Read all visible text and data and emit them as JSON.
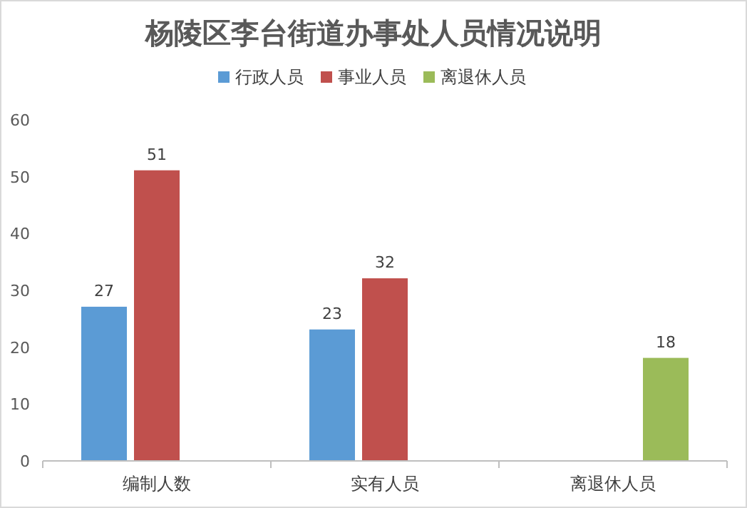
{
  "chart_data": {
    "type": "bar",
    "title": "杨陵区李台街道办事处人员情况说明",
    "categories": [
      "编制人数",
      "实有人员",
      "离退休人员"
    ],
    "series": [
      {
        "name": "行政人员",
        "color": "#5b9bd5",
        "values": [
          27,
          23,
          null
        ]
      },
      {
        "name": "事业人员",
        "color": "#c0504d",
        "values": [
          51,
          32,
          null
        ]
      },
      {
        "name": "离退休人员",
        "color": "#9bbb59",
        "values": [
          null,
          null,
          18
        ]
      }
    ],
    "ylim": [
      0,
      60
    ],
    "yticks": [
      0,
      10,
      20,
      30,
      40,
      50,
      60
    ],
    "data_labels": true,
    "legend": "top",
    "grid": false
  }
}
